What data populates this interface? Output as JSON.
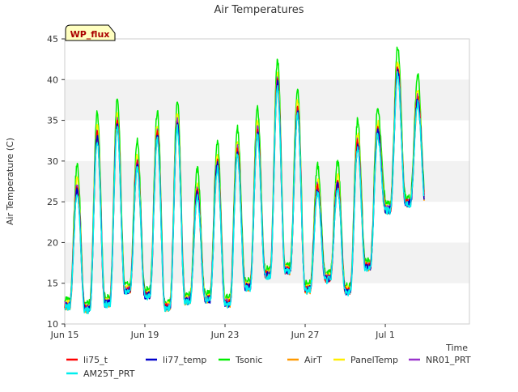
{
  "chart_data": {
    "type": "line",
    "title": "Air Temperatures",
    "xlabel": "Time",
    "ylabel": "Air Temperature (C)",
    "annotation": "WP_flux",
    "xlim": [
      "2024-06-15",
      "2024-07-03"
    ],
    "ylim": [
      10,
      45
    ],
    "yticks": [
      10,
      15,
      20,
      25,
      30,
      35,
      40,
      45
    ],
    "xticks": [
      {
        "date": "2024-06-15",
        "label": "Jun 15"
      },
      {
        "date": "2024-06-19",
        "label": "Jun 19"
      },
      {
        "date": "2024-06-23",
        "label": "Jun 23"
      },
      {
        "date": "2024-06-27",
        "label": "Jun 27"
      },
      {
        "date": "2024-07-01",
        "label": "Jul 1"
      }
    ],
    "grid": false,
    "background_bands": true,
    "legend_position": "bottom",
    "x_dates": [
      "2024-06-15",
      "2024-06-16",
      "2024-06-17",
      "2024-06-18",
      "2024-06-19",
      "2024-06-20",
      "2024-06-21",
      "2024-06-22",
      "2024-06-23",
      "2024-06-24",
      "2024-06-25",
      "2024-06-26",
      "2024-06-27",
      "2024-06-28",
      "2024-06-29",
      "2024-06-30",
      "2024-07-01",
      "2024-07-02"
    ],
    "daily_min": [
      12.2,
      11.8,
      12.5,
      14.0,
      13.5,
      12.0,
      12.8,
      13.0,
      12.5,
      14.5,
      16.0,
      16.5,
      14.2,
      15.5,
      14.0,
      17.0,
      24.0,
      24.8
    ],
    "daily_max": [
      26.5,
      33.0,
      34.5,
      29.5,
      33.0,
      34.5,
      26.0,
      29.5,
      31.0,
      33.5,
      39.5,
      36.0,
      26.5,
      27.0,
      32.0,
      33.5,
      41.0,
      37.5
    ],
    "series": [
      {
        "name": "li75_t",
        "color": "#ff0000",
        "offset": 0.3
      },
      {
        "name": "li77_temp",
        "color": "#0000cc",
        "offset": 0.0
      },
      {
        "name": "Tsonic",
        "color": "#00ee00",
        "offset": 3.0
      },
      {
        "name": "AirT",
        "color": "#ff9900",
        "offset": -0.2
      },
      {
        "name": "PanelTemp",
        "color": "#ffee00",
        "offset": 1.2
      },
      {
        "name": "NR01_PRT",
        "color": "#9933cc",
        "offset": 0.6
      },
      {
        "name": "AM25T_PRT",
        "color": "#00eeee",
        "offset": -0.4
      }
    ]
  }
}
